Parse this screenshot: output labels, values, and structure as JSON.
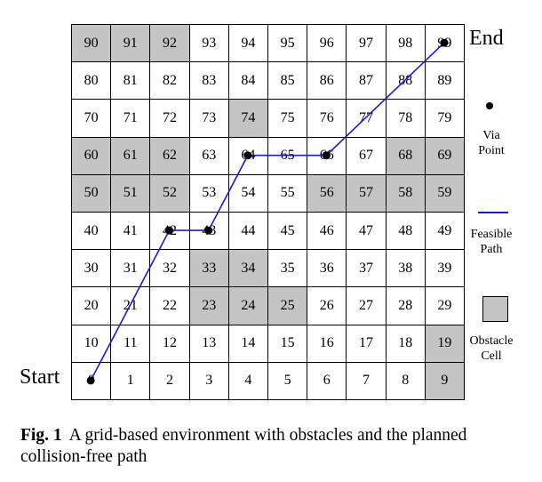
{
  "grid": {
    "rows": [
      [
        90,
        91,
        92,
        93,
        94,
        95,
        96,
        97,
        98,
        99
      ],
      [
        80,
        81,
        82,
        83,
        84,
        85,
        86,
        87,
        88,
        89
      ],
      [
        70,
        71,
        72,
        73,
        74,
        75,
        76,
        77,
        78,
        79
      ],
      [
        60,
        61,
        62,
        63,
        64,
        65,
        66,
        67,
        68,
        69
      ],
      [
        50,
        51,
        52,
        53,
        54,
        55,
        56,
        57,
        58,
        59
      ],
      [
        40,
        41,
        42,
        43,
        44,
        45,
        46,
        47,
        48,
        49
      ],
      [
        30,
        31,
        32,
        33,
        34,
        35,
        36,
        37,
        38,
        39
      ],
      [
        20,
        21,
        22,
        23,
        24,
        25,
        26,
        27,
        28,
        29
      ],
      [
        10,
        11,
        12,
        13,
        14,
        15,
        16,
        17,
        18,
        19
      ],
      [
        0,
        1,
        2,
        3,
        4,
        5,
        6,
        7,
        8,
        9
      ]
    ],
    "obstacle_cells": [
      90,
      91,
      92,
      74,
      60,
      61,
      62,
      68,
      69,
      50,
      51,
      52,
      56,
      57,
      58,
      59,
      33,
      34,
      23,
      24,
      25,
      19,
      9
    ],
    "path_cells": [
      0,
      42,
      43,
      64,
      66,
      99
    ],
    "via_points": [
      0,
      42,
      43,
      64,
      66,
      99
    ],
    "obstacle_color": "#c4c4c4",
    "path_color": "#1a1adf"
  },
  "labels": {
    "start": "Start",
    "end": "End"
  },
  "legend": {
    "via_point_line1": "Via",
    "via_point_line2": "Point",
    "feasible_path_line1": "Feasible",
    "feasible_path_line2": "Path",
    "obstacle_cell_line1": "Obstacle",
    "obstacle_cell_line2": "Cell"
  },
  "caption": {
    "label": "Fig. 1",
    "text": "A grid-based environment with obstacles and the planned collision-free path"
  }
}
